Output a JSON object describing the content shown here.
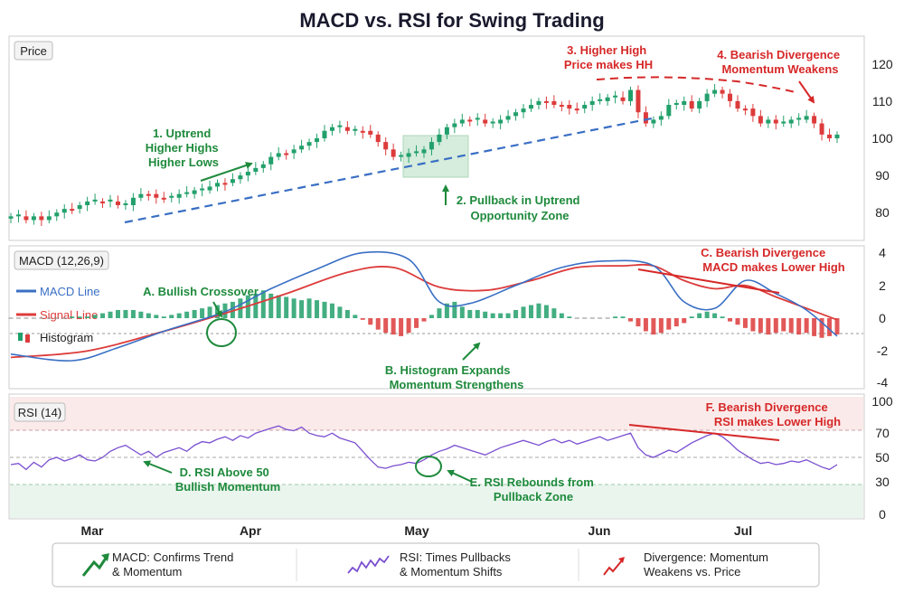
{
  "title": "MACD vs. RSI for Swing Trading",
  "colors": {
    "green": "#22a06b",
    "red": "#dd3b3b",
    "blue": "#3a6fc4",
    "purple": "#7a4fd0",
    "annot_green": "#1e8a3c",
    "annot_red": "#d62828",
    "pullback_zone": "#cfe9d6"
  },
  "xaxis": {
    "ticks": [
      "Mar",
      "Apr",
      "May",
      "Jun",
      "Jul"
    ]
  },
  "legend": {
    "items": [
      {
        "icon": "trend-arrow-icon",
        "line1": "MACD: Confirms Trend",
        "line2": "& Momentum"
      },
      {
        "icon": "rsi-squiggle-icon",
        "line1": "RSI: Times Pullbacks",
        "line2": "& Momentum Shifts"
      },
      {
        "icon": "divergence-arrow-icon",
        "line1": "Divergence: Momentum",
        "line2": "Weakens vs. Price"
      }
    ]
  },
  "chart_data": [
    {
      "panel": "price",
      "type": "candlestick",
      "label": "Price",
      "ylim": [
        73,
        127
      ],
      "yticks": [
        80,
        90,
        100,
        110,
        120
      ],
      "closes": [
        79,
        79,
        78,
        79,
        78,
        79,
        80,
        81,
        81,
        82,
        83,
        83,
        83,
        83,
        82,
        82,
        84,
        85,
        85,
        84,
        84,
        84,
        85,
        85,
        86,
        86,
        87,
        88,
        88,
        89,
        90,
        91,
        92,
        93,
        95,
        96,
        96,
        97,
        98,
        99,
        100,
        102,
        103,
        103,
        102,
        102,
        102,
        101,
        99,
        97,
        95,
        95,
        96,
        96,
        97,
        99,
        101,
        103,
        104,
        105,
        105,
        105,
        104,
        104,
        105,
        106,
        107,
        108,
        109,
        110,
        110,
        109,
        109,
        108,
        108,
        109,
        110,
        110,
        111,
        111,
        110,
        113,
        107,
        104,
        105,
        106,
        109,
        109,
        110,
        108,
        110,
        112,
        113,
        112,
        110,
        108,
        108,
        106,
        104,
        105,
        104,
        104,
        105,
        105,
        106,
        104,
        101,
        100,
        101
      ],
      "annotations": [
        {
          "text": [
            "1. Uptrend",
            "Higher Highs",
            "Higher Lows"
          ],
          "color": "green"
        },
        {
          "text": [
            "2. Pullback in Uptrend",
            "Opportunity Zone"
          ],
          "color": "green"
        },
        {
          "text": [
            "3. Higher High",
            "Price makes HH"
          ],
          "color": "red"
        },
        {
          "text": [
            "4. Bearish Divergence",
            "Momentum Weakens"
          ],
          "color": "red"
        }
      ]
    },
    {
      "panel": "macd",
      "type": "line",
      "label": "MACD (12,26,9)",
      "ylim": [
        -4.2,
        4.2
      ],
      "yticks": [
        4,
        2,
        0,
        -2,
        -4
      ],
      "series": [
        {
          "name": "MACD Line",
          "x": [
            0,
            8,
            14,
            20,
            28,
            34,
            40,
            46,
            52,
            56,
            60,
            66,
            72,
            78,
            84,
            88,
            92,
            96,
            100,
            104,
            108
          ],
          "values": [
            -2.2,
            -2.6,
            -1.8,
            -0.8,
            0.4,
            1.8,
            3.0,
            4.0,
            3.6,
            1.0,
            0.9,
            2.0,
            3.1,
            3.5,
            3.2,
            1.0,
            0.6,
            2.3,
            1.5,
            0.5,
            -1.1
          ]
        },
        {
          "name": "Signal Line",
          "x": [
            0,
            10,
            20,
            28,
            36,
            44,
            50,
            56,
            62,
            68,
            74,
            80,
            84,
            88,
            92,
            96,
            100,
            104,
            108
          ],
          "values": [
            -2.4,
            -2.0,
            -0.8,
            0.3,
            1.5,
            2.8,
            3.1,
            1.9,
            1.7,
            2.3,
            3.1,
            3.2,
            3.2,
            2.3,
            1.8,
            2.0,
            1.3,
            0.6,
            -0.1
          ]
        },
        {
          "name": "Histogram",
          "values": [
            0.0,
            0.0,
            0.0,
            0.0,
            0.0,
            0.0,
            0.0,
            0.0,
            0.1,
            0.1,
            0.1,
            0.2,
            0.3,
            0.4,
            0.5,
            0.5,
            0.5,
            0.4,
            0.3,
            0.2,
            0.1,
            0.2,
            0.3,
            0.4,
            0.5,
            0.6,
            0.7,
            0.8,
            0.9,
            1.0,
            1.2,
            1.4,
            1.5,
            1.7,
            1.5,
            1.4,
            1.3,
            1.2,
            1.1,
            1.2,
            1.1,
            1.0,
            0.9,
            0.7,
            0.5,
            0.2,
            -0.1,
            -0.4,
            -0.7,
            -0.9,
            -1.0,
            -1.1,
            -0.9,
            -0.6,
            -0.2,
            0.2,
            0.6,
            0.9,
            1.0,
            0.7,
            0.5,
            0.5,
            0.4,
            0.3,
            0.3,
            0.3,
            0.5,
            0.7,
            0.8,
            0.9,
            0.8,
            0.6,
            0.3,
            0.1,
            0.0,
            0.0,
            0.0,
            0.0,
            0.0,
            0.1,
            0.1,
            -0.2,
            -0.5,
            -0.8,
            -1.0,
            -0.9,
            -0.7,
            -0.5,
            -0.3,
            0.1,
            0.3,
            0.4,
            0.3,
            0.1,
            -0.2,
            -0.4,
            -0.6,
            -0.8,
            -0.9,
            -1.0,
            -0.9,
            -0.8,
            -0.9,
            -1.0,
            -0.9,
            -1.1,
            -1.2,
            -1.1,
            -1.0
          ]
        }
      ],
      "annotations": [
        {
          "text": [
            "A. Bullish Crossover"
          ],
          "color": "green"
        },
        {
          "text": [
            "B. Histogram Expands",
            "Momentum Strengthens"
          ],
          "color": "green"
        },
        {
          "text": [
            "C. Bearish Divergence",
            "MACD makes Lower High"
          ],
          "color": "red"
        }
      ]
    },
    {
      "panel": "rsi",
      "type": "line",
      "label": "RSI (14)",
      "ylim": [
        0,
        100
      ],
      "yticks": [
        100,
        70,
        50,
        30,
        0
      ],
      "series": [
        {
          "name": "RSI",
          "values": [
            44,
            45,
            40,
            46,
            42,
            48,
            50,
            47,
            49,
            52,
            48,
            47,
            50,
            55,
            58,
            60,
            56,
            52,
            55,
            50,
            54,
            56,
            58,
            55,
            60,
            63,
            62,
            65,
            67,
            64,
            68,
            66,
            70,
            72,
            74,
            76,
            73,
            72,
            75,
            70,
            68,
            67,
            70,
            66,
            64,
            62,
            55,
            48,
            42,
            41,
            43,
            44,
            46,
            45,
            48,
            52,
            55,
            57,
            60,
            58,
            56,
            54,
            52,
            55,
            58,
            60,
            62,
            64,
            62,
            60,
            63,
            65,
            62,
            64,
            61,
            63,
            65,
            67,
            64,
            66,
            68,
            70,
            58,
            52,
            50,
            53,
            56,
            54,
            58,
            62,
            65,
            68,
            70,
            67,
            62,
            56,
            52,
            48,
            45,
            46,
            44,
            45,
            47,
            46,
            48,
            45,
            42,
            40,
            44
          ]
        }
      ],
      "annotations": [
        {
          "text": [
            "D. RSI Above 50",
            "Bullish Momentum"
          ],
          "color": "green"
        },
        {
          "text": [
            "E. RSI Rebounds from",
            "Pullback Zone"
          ],
          "color": "green"
        },
        {
          "text": [
            "F. Bearish Divergence",
            "RSI makes Lower High"
          ],
          "color": "red"
        }
      ]
    }
  ]
}
